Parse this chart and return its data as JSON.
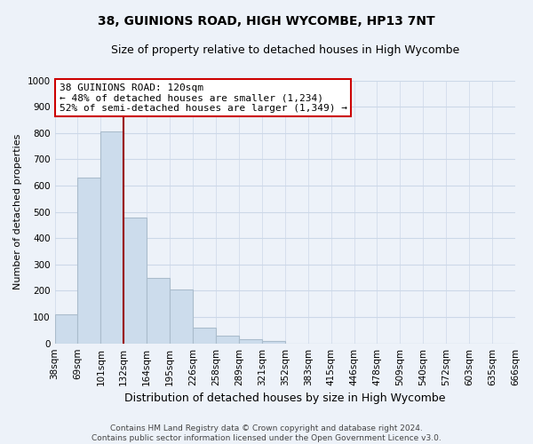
{
  "title": "38, GUINIONS ROAD, HIGH WYCOMBE, HP13 7NT",
  "subtitle": "Size of property relative to detached houses in High Wycombe",
  "bar_heights": [
    110,
    630,
    805,
    480,
    250,
    205,
    60,
    30,
    15,
    10,
    0,
    0,
    0,
    0,
    0,
    0,
    0,
    0,
    0,
    0
  ],
  "bar_color": "#ccdcec",
  "bar_edgecolor": "#aabccc",
  "marker_line_color": "#990000",
  "x_labels": [
    "38sqm",
    "69sqm",
    "101sqm",
    "132sqm",
    "164sqm",
    "195sqm",
    "226sqm",
    "258sqm",
    "289sqm",
    "321sqm",
    "352sqm",
    "383sqm",
    "415sqm",
    "446sqm",
    "478sqm",
    "509sqm",
    "540sqm",
    "572sqm",
    "603sqm",
    "635sqm",
    "666sqm"
  ],
  "xlabel": "Distribution of detached houses by size in High Wycombe",
  "ylabel": "Number of detached properties",
  "ylim": [
    0,
    1000
  ],
  "yticks": [
    0,
    100,
    200,
    300,
    400,
    500,
    600,
    700,
    800,
    900,
    1000
  ],
  "annotation_title": "38 GUINIONS ROAD: 120sqm",
  "annotation_line1": "← 48% of detached houses are smaller (1,234)",
  "annotation_line2": "52% of semi-detached houses are larger (1,349) →",
  "annotation_box_color": "#ffffff",
  "annotation_border_color": "#cc0000",
  "grid_color": "#ccd8e8",
  "footer_line1": "Contains HM Land Registry data © Crown copyright and database right 2024.",
  "footer_line2": "Contains public sector information licensed under the Open Government Licence v3.0.",
  "bg_color": "#edf2f9",
  "plot_bg_color": "#edf2f9",
  "title_fontsize": 10,
  "subtitle_fontsize": 9,
  "ylabel_fontsize": 8,
  "xlabel_fontsize": 9,
  "tick_fontsize": 7.5,
  "annotation_fontsize": 8,
  "footer_fontsize": 6.5
}
